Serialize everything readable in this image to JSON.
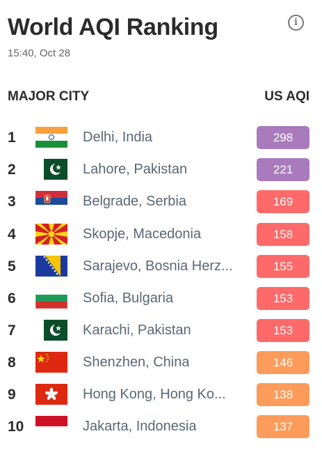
{
  "header": {
    "title": "World AQI Ranking",
    "timestamp": "15:40, Oct 28"
  },
  "table": {
    "col_city": "MAJOR CITY",
    "col_aqi": "US AQI"
  },
  "colors": {
    "very_unhealthy": "#a97abc",
    "unhealthy": "#fe6a69",
    "sensitive": "#fd9b5a"
  },
  "rows": [
    {
      "rank": "1",
      "city": "Delhi, India",
      "aqi": "298",
      "flag": "india-flag-icon",
      "level": "very_unhealthy"
    },
    {
      "rank": "2",
      "city": "Lahore, Pakistan",
      "aqi": "221",
      "flag": "pakistan-flag-icon",
      "level": "very_unhealthy"
    },
    {
      "rank": "3",
      "city": "Belgrade, Serbia",
      "aqi": "169",
      "flag": "serbia-flag-icon",
      "level": "unhealthy"
    },
    {
      "rank": "4",
      "city": "Skopje, Macedonia",
      "aqi": "158",
      "flag": "macedonia-flag-icon",
      "level": "unhealthy"
    },
    {
      "rank": "5",
      "city": "Sarajevo, Bosnia Herz...",
      "aqi": "155",
      "flag": "bosnia-flag-icon",
      "level": "unhealthy"
    },
    {
      "rank": "6",
      "city": "Sofia, Bulgaria",
      "aqi": "153",
      "flag": "bulgaria-flag-icon",
      "level": "unhealthy"
    },
    {
      "rank": "7",
      "city": "Karachi, Pakistan",
      "aqi": "153",
      "flag": "pakistan-flag-icon",
      "level": "unhealthy"
    },
    {
      "rank": "8",
      "city": "Shenzhen, China",
      "aqi": "146",
      "flag": "china-flag-icon",
      "level": "sensitive"
    },
    {
      "rank": "9",
      "city": "Hong Kong, Hong Ko...",
      "aqi": "138",
      "flag": "hongkong-flag-icon",
      "level": "sensitive"
    },
    {
      "rank": "10",
      "city": "Jakarta, Indonesia",
      "aqi": "137",
      "flag": "indonesia-flag-icon",
      "level": "sensitive"
    }
  ]
}
